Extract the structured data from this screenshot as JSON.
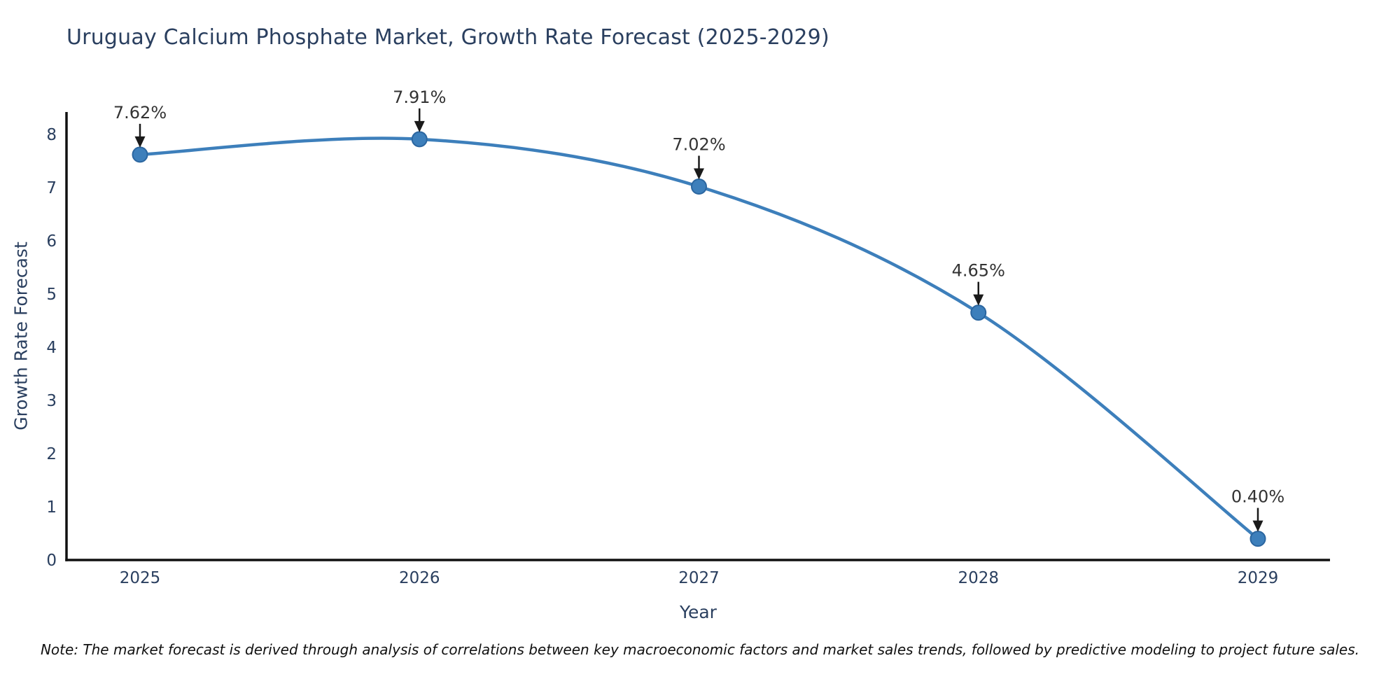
{
  "note": "Note: The market forecast is derived through analysis of correlations between key macroeconomic factors and market sales trends, followed by predictive modeling to project future sales.",
  "chart_data": {
    "type": "line",
    "title": "Uruguay Calcium Phosphate Market, Growth Rate Forecast (2025-2029)",
    "xlabel": "Year",
    "ylabel": "Growth Rate Forecast",
    "x": [
      2025,
      2026,
      2027,
      2028,
      2029
    ],
    "xticklabels": [
      "2025",
      "2026",
      "2027",
      "2028",
      "2029"
    ],
    "values": [
      7.62,
      7.91,
      7.02,
      4.65,
      0.4
    ],
    "point_labels": [
      "7.62%",
      "7.91%",
      "7.02%",
      "4.65%",
      "0.40%"
    ],
    "yticks": [
      0,
      1,
      2,
      3,
      4,
      5,
      6,
      7,
      8
    ],
    "ylim": [
      0,
      8.4
    ],
    "curve": "spline",
    "grid": false,
    "legend_position": "none",
    "colors": {
      "line": "#3d7fbb",
      "marker_fill": "#3d7fbb",
      "marker_edge": "#2b66a0",
      "axis": "#111111",
      "arrow": "#1a1a1a",
      "tick_label": "#2a3f5f",
      "axis_title": "#2a3f5f",
      "chart_title": "#2a3f5f",
      "annotation_text": "#333333"
    }
  }
}
